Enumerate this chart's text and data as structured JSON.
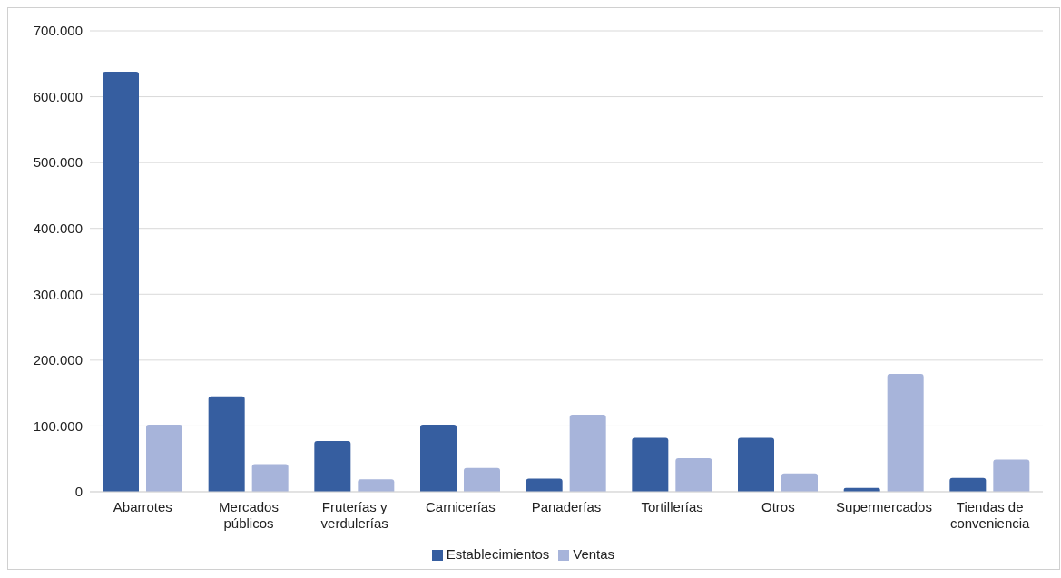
{
  "chart_data": {
    "type": "bar",
    "categories": [
      "Abarrotes",
      "Mercados públicos",
      "Fruterías y verdulerías",
      "Carnicerías",
      "Panaderías",
      "Tortillerías",
      "Otros",
      "Supermercados",
      "Tiendas de conveniencia"
    ],
    "series": [
      {
        "name": "Establecimientos",
        "color": "#365ea0",
        "values": [
          638000,
          145000,
          77000,
          102000,
          20000,
          82000,
          82000,
          6000,
          21000
        ]
      },
      {
        "name": "Ventas",
        "color": "#a7b4da",
        "values": [
          102000,
          42000,
          19000,
          36000,
          117000,
          51000,
          28000,
          179000,
          49000
        ]
      }
    ],
    "ylim": [
      0,
      700000
    ],
    "yticks": [
      {
        "value": 0,
        "label": "0"
      },
      {
        "value": 100000,
        "label": "100.000"
      },
      {
        "value": 200000,
        "label": "200.000"
      },
      {
        "value": 300000,
        "label": "300.000"
      },
      {
        "value": 400000,
        "label": "400.000"
      },
      {
        "value": 500000,
        "label": "500.000"
      },
      {
        "value": 600000,
        "label": "600.000"
      },
      {
        "value": 700000,
        "label": "700.000"
      }
    ],
    "grid": "y",
    "legend": "bottom"
  }
}
